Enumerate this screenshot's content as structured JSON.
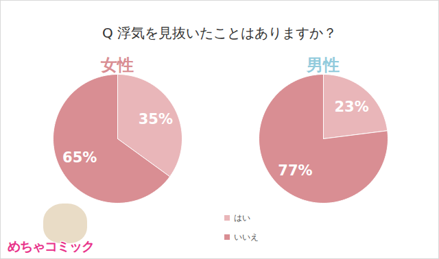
{
  "title": "Q 浮気を見抜いたことはありますか？",
  "logo": "めちゃコミック",
  "chart_data": [
    {
      "type": "pie",
      "title": "女性",
      "categories": [
        "はい",
        "いいえ"
      ],
      "values": [
        35,
        65
      ],
      "value_labels": [
        "35%",
        "65%"
      ],
      "colors": [
        "#e9b6b9",
        "#d98e93"
      ],
      "data_labels": true
    },
    {
      "type": "pie",
      "title": "男性",
      "categories": [
        "はい",
        "いいえ"
      ],
      "values": [
        23,
        77
      ],
      "value_labels": [
        "23%",
        "77%"
      ],
      "colors": [
        "#e9b6b9",
        "#d98e93"
      ],
      "data_labels": true,
      "legend": "bottom"
    }
  ]
}
